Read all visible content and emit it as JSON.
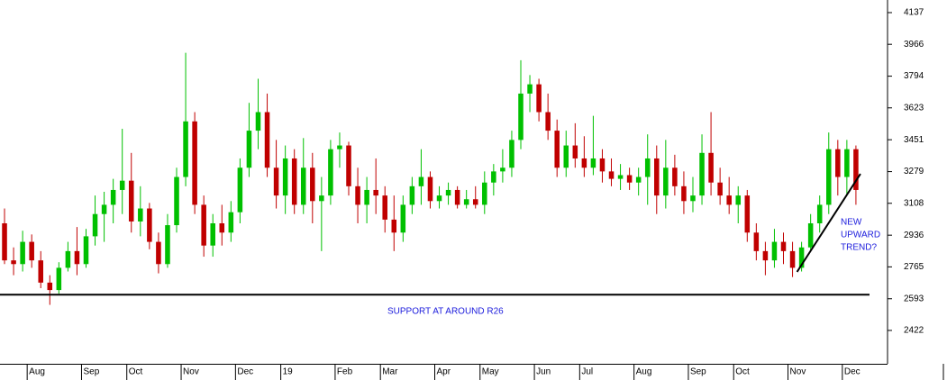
{
  "chart_data": {
    "type": "candlestick",
    "up_color": "#00c000",
    "down_color": "#c00000",
    "xlim": [
      0,
      96
    ],
    "xticks": [
      {
        "value": 3,
        "label": "Aug"
      },
      {
        "value": 9,
        "label": "Sep"
      },
      {
        "value": 14,
        "label": "Oct"
      },
      {
        "value": 20,
        "label": "Nov"
      },
      {
        "value": 26,
        "label": "Dec"
      },
      {
        "value": 31,
        "label": "19"
      },
      {
        "value": 37,
        "label": "Feb"
      },
      {
        "value": 42,
        "label": "Mar"
      },
      {
        "value": 48,
        "label": "Apr"
      },
      {
        "value": 53,
        "label": "May"
      },
      {
        "value": 59,
        "label": "Jun"
      },
      {
        "value": 64,
        "label": "Jul"
      },
      {
        "value": 70,
        "label": "Aug"
      },
      {
        "value": 76,
        "label": "Sep"
      },
      {
        "value": 81,
        "label": "Oct"
      },
      {
        "value": 87,
        "label": "Nov"
      },
      {
        "value": 93,
        "label": "Dec"
      }
    ],
    "ylim": [
      2242,
      4205
    ],
    "yticks": [
      2422,
      2593,
      2765,
      2936,
      3108,
      3279,
      3451,
      3623,
      3794,
      3966,
      4137
    ],
    "open": [
      3000,
      2800,
      2780,
      2900,
      2800,
      2680,
      2640,
      2760,
      2850,
      2780,
      2930,
      3050,
      3100,
      3180,
      3230,
      3010,
      3080,
      2900,
      2780,
      2990,
      3250,
      3550,
      3100,
      2880,
      3000,
      2950,
      3060,
      3300,
      3500,
      3600,
      3300,
      3150,
      3350,
      3100,
      3300,
      3120,
      3150,
      3400,
      3420,
      3200,
      3100,
      3180,
      3150,
      3020,
      2950,
      3100,
      3200,
      3250,
      3120,
      3150,
      3180,
      3100,
      3130,
      3100,
      3220,
      3280,
      3300,
      3450,
      3700,
      3750,
      3600,
      3500,
      3300,
      3420,
      3350,
      3300,
      3350,
      3280,
      3240,
      3260,
      3220,
      3250,
      3350,
      3150,
      3300,
      3200,
      3120,
      3150,
      3380,
      3220,
      3150,
      3100,
      3150,
      2950,
      2850,
      2800,
      2900,
      2850,
      2760,
      2870,
      3000,
      3100,
      3400,
      3250,
      3400
    ],
    "high": [
      3080,
      2870,
      2960,
      2940,
      2850,
      2720,
      2790,
      2900,
      2980,
      2970,
      3150,
      3170,
      3240,
      3510,
      3380,
      3200,
      3110,
      2950,
      3050,
      3300,
      3920,
      3600,
      3150,
      3050,
      3100,
      3120,
      3350,
      3650,
      3780,
      3700,
      3450,
      3420,
      3400,
      3460,
      3380,
      3250,
      3450,
      3490,
      3440,
      3300,
      3250,
      3350,
      3200,
      3150,
      3150,
      3250,
      3400,
      3280,
      3200,
      3220,
      3200,
      3180,
      3200,
      3280,
      3320,
      3400,
      3500,
      3880,
      3800,
      3780,
      3700,
      3560,
      3500,
      3540,
      3470,
      3580,
      3400,
      3350,
      3320,
      3300,
      3300,
      3480,
      3420,
      3450,
      3370,
      3280,
      3250,
      3480,
      3600,
      3300,
      3250,
      3200,
      3180,
      3000,
      2900,
      2970,
      2950,
      2900,
      2900,
      3050,
      3150,
      3490,
      3450,
      3450,
      3420
    ],
    "low": [
      2780,
      2720,
      2740,
      2760,
      2650,
      2560,
      2620,
      2740,
      2720,
      2760,
      2880,
      2900,
      3000,
      3050,
      2950,
      2930,
      2860,
      2730,
      2760,
      2950,
      3200,
      3050,
      2820,
      2820,
      2880,
      2900,
      3000,
      3250,
      3400,
      3250,
      3080,
      3050,
      3050,
      3050,
      3000,
      2850,
      3100,
      3300,
      3150,
      3000,
      3000,
      3050,
      2950,
      2850,
      2900,
      3050,
      3100,
      3080,
      3080,
      3100,
      3080,
      3080,
      3080,
      3050,
      3150,
      3220,
      3250,
      3400,
      3600,
      3550,
      3450,
      3250,
      3250,
      3300,
      3250,
      3260,
      3220,
      3200,
      3180,
      3180,
      3150,
      3100,
      3050,
      3080,
      3150,
      3050,
      3060,
      3100,
      3150,
      3100,
      3050,
      3000,
      2900,
      2800,
      2720,
      2760,
      2780,
      2710,
      2740,
      2850,
      2950,
      3050,
      3150,
      3150,
      3100
    ],
    "close": [
      2800,
      2780,
      2900,
      2800,
      2680,
      2640,
      2760,
      2850,
      2780,
      2930,
      3050,
      3100,
      3180,
      3230,
      3010,
      3080,
      2900,
      2780,
      2990,
      3250,
      3550,
      3100,
      2880,
      3000,
      2950,
      3060,
      3300,
      3500,
      3600,
      3300,
      3150,
      3350,
      3100,
      3300,
      3120,
      3150,
      3400,
      3420,
      3200,
      3100,
      3180,
      3150,
      3020,
      2950,
      3100,
      3200,
      3250,
      3120,
      3150,
      3180,
      3100,
      3130,
      3100,
      3220,
      3280,
      3300,
      3450,
      3700,
      3750,
      3600,
      3500,
      3300,
      3420,
      3350,
      3300,
      3350,
      3280,
      3240,
      3260,
      3220,
      3250,
      3350,
      3150,
      3300,
      3200,
      3120,
      3150,
      3380,
      3220,
      3150,
      3100,
      3150,
      2950,
      2850,
      2800,
      2900,
      2850,
      2760,
      2870,
      3000,
      3100,
      3400,
      3250,
      3400,
      3180
    ],
    "lines": [
      {
        "x": [
          0,
          96
        ],
        "y": [
          2615,
          2615
        ],
        "color": "#000000"
      },
      {
        "x": [
          88,
          95
        ],
        "y": [
          2738,
          3267
        ],
        "color": "#000000"
      }
    ],
    "annotations": [
      {
        "text": [
          "SUPPORT AT AROUND R26"
        ]
      },
      {
        "text": [
          "NEW",
          "UPWARD",
          "TREND?"
        ]
      }
    ]
  }
}
